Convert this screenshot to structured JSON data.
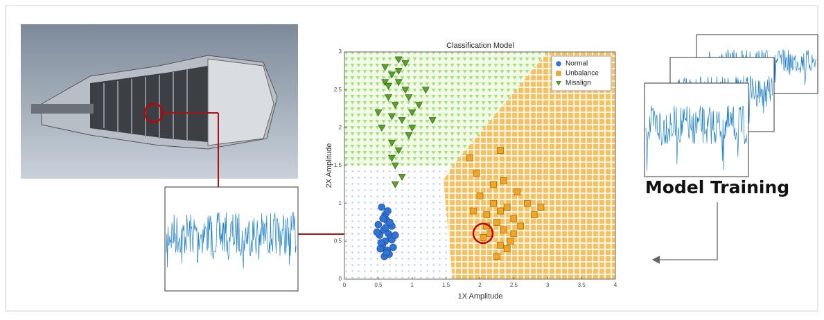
{
  "chart_data": {
    "type": "scatter",
    "title": "Classification Model",
    "xlabel": "1X Amplitude",
    "ylabel": "2X Amplitude",
    "xlim": [
      0,
      4
    ],
    "xticks": [
      0,
      0.5,
      1,
      1.5,
      2,
      2.5,
      3,
      3.5,
      4
    ],
    "ylim": [
      0,
      3
    ],
    "yticks": [
      0,
      0.5,
      1,
      1.5,
      2,
      2.5,
      3
    ],
    "legend": "upper right",
    "series": [
      {
        "name": "Normal",
        "color": "#2f73d6",
        "marker": "circle",
        "x": [
          0.55,
          0.6,
          0.62,
          0.5,
          0.7,
          0.58,
          0.65,
          0.52,
          0.68,
          0.6,
          0.56,
          0.72,
          0.63,
          0.48,
          0.66,
          0.59,
          0.54,
          0.7,
          0.61,
          0.57,
          0.64,
          0.75,
          0.53,
          0.62,
          0.67
        ],
        "values": [
          0.95,
          0.85,
          0.78,
          0.72,
          0.7,
          0.65,
          0.6,
          0.58,
          0.55,
          0.5,
          0.45,
          0.42,
          0.38,
          0.62,
          0.33,
          0.3,
          0.48,
          0.52,
          0.68,
          0.8,
          0.9,
          0.58,
          0.4,
          0.35,
          0.75
        ]
      },
      {
        "name": "Unbalance",
        "color": "#f0a524",
        "marker": "square",
        "x": [
          2.0,
          2.2,
          2.3,
          2.1,
          2.4,
          2.25,
          2.5,
          2.35,
          1.9,
          2.15,
          2.6,
          2.05,
          2.45,
          2.3,
          2.2,
          2.7,
          2.55,
          1.95,
          2.4,
          2.8,
          2.25,
          2.35,
          2.1,
          2.9,
          2.5,
          1.85,
          2.3
        ],
        "values": [
          1.1,
          1.0,
          0.9,
          0.85,
          0.95,
          0.75,
          0.8,
          0.65,
          0.9,
          0.6,
          0.7,
          0.55,
          0.5,
          0.45,
          1.25,
          1.0,
          1.15,
          1.4,
          0.4,
          0.85,
          0.3,
          1.3,
          0.7,
          0.95,
          0.6,
          1.6,
          1.7
        ]
      },
      {
        "name": "Misalign",
        "color": "#5aa02c",
        "marker": "triangle",
        "x": [
          0.6,
          0.7,
          0.8,
          0.9,
          0.65,
          0.75,
          1.0,
          0.85,
          0.55,
          0.95,
          1.1,
          0.7,
          0.8,
          0.6,
          0.9,
          1.2,
          0.5,
          0.75,
          0.85,
          1.0,
          0.65,
          0.8,
          0.7,
          0.95,
          1.3,
          0.75,
          0.8,
          0.7
        ],
        "values": [
          2.8,
          2.7,
          2.6,
          2.5,
          2.4,
          2.3,
          2.2,
          2.1,
          2.0,
          1.9,
          2.3,
          1.8,
          1.7,
          2.6,
          2.85,
          2.5,
          2.2,
          1.5,
          1.35,
          2.0,
          2.55,
          2.9,
          1.6,
          2.4,
          2.1,
          1.25,
          2.75,
          2.15
        ]
      }
    ]
  },
  "caption": "Model Training"
}
